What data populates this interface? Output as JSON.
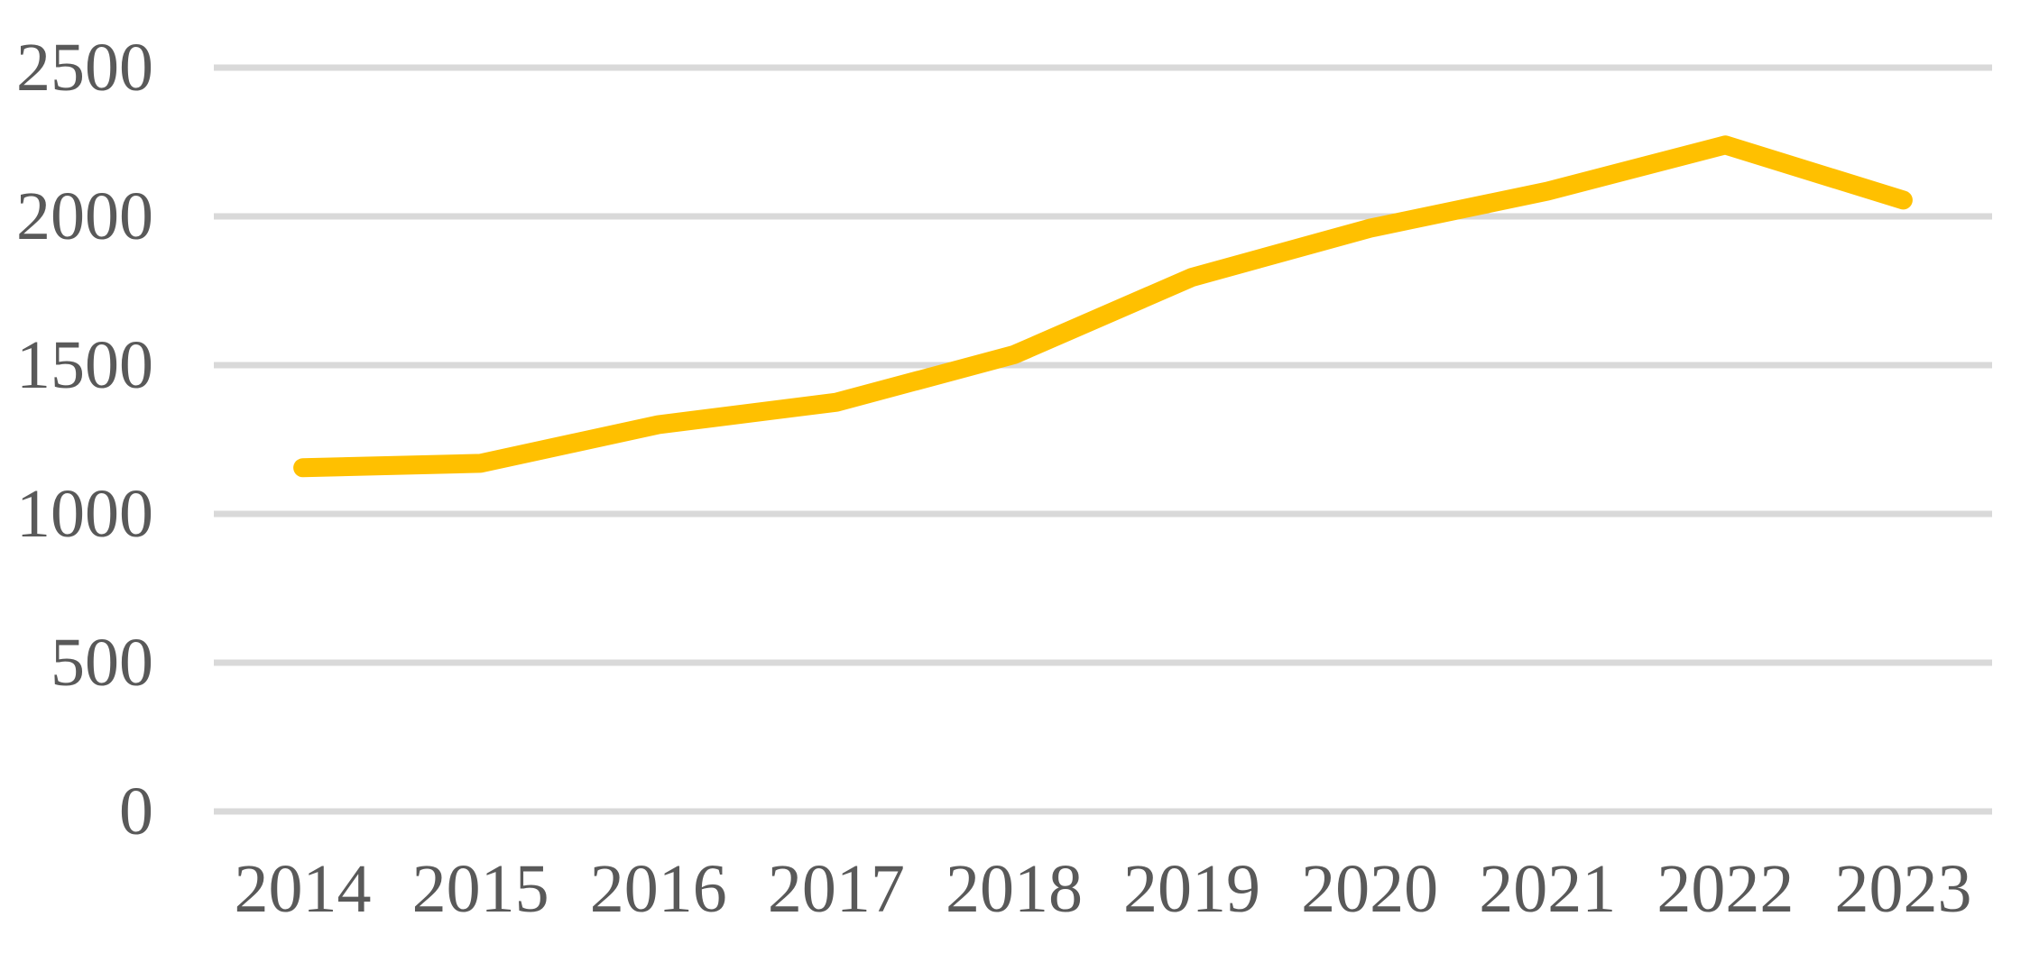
{
  "chart_data": {
    "type": "line",
    "title": "",
    "xlabel": "",
    "ylabel": "",
    "categories": [
      "2014",
      "2015",
      "2016",
      "2017",
      "2018",
      "2019",
      "2020",
      "2021",
      "2022",
      "2023"
    ],
    "series": [
      {
        "color": "#FFC000",
        "values": [
          1155,
          1170,
          1300,
          1375,
          1535,
          1795,
          1960,
          2085,
          2240,
          2055
        ]
      }
    ],
    "ylim": [
      0,
      2500
    ],
    "yticks": [
      0,
      500,
      1000,
      1500,
      2000,
      2500
    ],
    "ytick_labels": [
      "0",
      "500",
      "1000",
      "1500",
      "2000",
      "2500"
    ],
    "grid": true,
    "legend_position": "none",
    "colors": {
      "line": "#FFC000",
      "gridline": "#D9D9D9",
      "axis_text": "#595959",
      "background": "#FFFFFF"
    }
  }
}
